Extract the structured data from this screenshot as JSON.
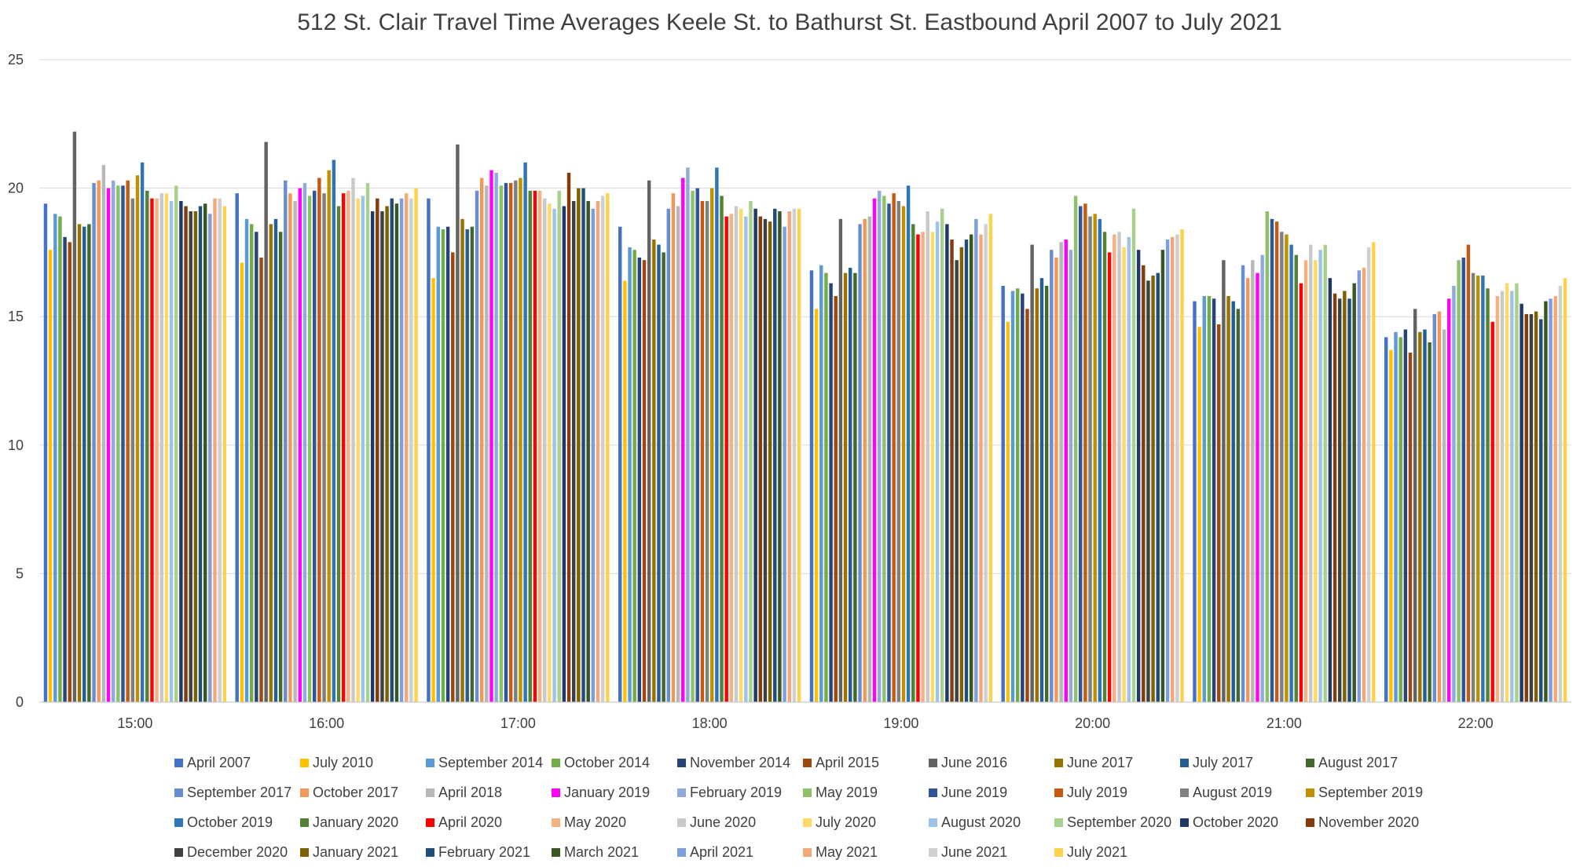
{
  "chart_data": {
    "type": "bar",
    "title": "512 St. Clair Travel Time Averages Keele St. to Bathurst St. Eastbound April 2007 to July 2021",
    "xlabel": "",
    "ylabel": "",
    "ylim": [
      0,
      25
    ],
    "yticks": [
      0,
      5,
      10,
      15,
      20,
      25
    ],
    "grid": true,
    "legend_position": "bottom",
    "categories": [
      "15:00",
      "16:00",
      "17:00",
      "18:00",
      "19:00",
      "20:00",
      "21:00",
      "22:00"
    ],
    "series": [
      {
        "name": "April 2007",
        "color": "#4472C4",
        "values": [
          19.4,
          19.8,
          19.6,
          18.5,
          16.8,
          16.2,
          15.6,
          14.2
        ]
      },
      {
        "name": "July 2010",
        "color": "#FFC000",
        "values": [
          17.6,
          17.1,
          16.5,
          16.4,
          15.3,
          14.8,
          14.6,
          13.7
        ]
      },
      {
        "name": "September 2014",
        "color": "#5B9BD5",
        "values": [
          19.0,
          18.8,
          18.5,
          17.7,
          17.0,
          16.0,
          15.8,
          14.4
        ]
      },
      {
        "name": "October 2014",
        "color": "#70AD47",
        "values": [
          18.9,
          18.6,
          18.4,
          17.6,
          16.7,
          16.1,
          15.8,
          14.2
        ]
      },
      {
        "name": "November 2014",
        "color": "#264478",
        "values": [
          18.1,
          18.3,
          18.5,
          17.3,
          16.3,
          15.9,
          15.7,
          14.5
        ]
      },
      {
        "name": "April 2015",
        "color": "#9E480E",
        "values": [
          17.9,
          17.3,
          17.5,
          17.2,
          15.8,
          15.3,
          14.7,
          13.6
        ]
      },
      {
        "name": "June 2016",
        "color": "#636363",
        "values": [
          22.2,
          21.8,
          21.7,
          20.3,
          18.8,
          17.8,
          17.2,
          15.3
        ]
      },
      {
        "name": "June 2017",
        "color": "#997300",
        "values": [
          18.6,
          18.6,
          18.8,
          18.0,
          16.7,
          16.1,
          15.8,
          14.4
        ]
      },
      {
        "name": "July 2017",
        "color": "#255E91",
        "values": [
          18.5,
          18.8,
          18.4,
          17.8,
          16.9,
          16.5,
          15.6,
          14.5
        ]
      },
      {
        "name": "August 2017",
        "color": "#43682B",
        "values": [
          18.6,
          18.3,
          18.5,
          17.5,
          16.7,
          16.2,
          15.3,
          14.0
        ]
      },
      {
        "name": "September 2017",
        "color": "#698ED0",
        "values": [
          20.2,
          20.3,
          19.9,
          19.2,
          18.6,
          17.6,
          17.0,
          15.1
        ]
      },
      {
        "name": "October 2017",
        "color": "#F1975A",
        "values": [
          20.3,
          19.8,
          20.4,
          19.8,
          18.8,
          17.3,
          16.5,
          15.2
        ]
      },
      {
        "name": "April 2018",
        "color": "#B7B7B7",
        "values": [
          20.9,
          19.5,
          20.1,
          19.3,
          18.9,
          17.9,
          17.2,
          14.5
        ]
      },
      {
        "name": "January 2019",
        "color": "#FF00FF",
        "values": [
          20.0,
          20.0,
          20.7,
          20.4,
          19.6,
          18.0,
          16.7,
          15.7
        ]
      },
      {
        "name": "February 2019",
        "color": "#8FAADC",
        "values": [
          20.3,
          20.2,
          20.6,
          20.8,
          19.9,
          17.6,
          17.4,
          16.2
        ]
      },
      {
        "name": "May 2019",
        "color": "#8CC168",
        "values": [
          20.1,
          19.7,
          20.1,
          19.9,
          19.7,
          19.7,
          19.1,
          17.2
        ]
      },
      {
        "name": "June 2019",
        "color": "#2F5597",
        "values": [
          20.1,
          19.9,
          20.2,
          20.0,
          19.4,
          19.3,
          18.8,
          17.3
        ]
      },
      {
        "name": "July 2019",
        "color": "#C55A11",
        "values": [
          20.3,
          20.4,
          20.2,
          19.5,
          19.8,
          19.4,
          18.7,
          17.8
        ]
      },
      {
        "name": "August 2019",
        "color": "#7F7F7F",
        "values": [
          19.6,
          19.8,
          20.3,
          19.5,
          19.5,
          18.9,
          18.3,
          16.7
        ]
      },
      {
        "name": "September 2019",
        "color": "#BF9000",
        "values": [
          20.5,
          20.7,
          20.4,
          20.0,
          19.3,
          19.0,
          18.2,
          16.6
        ]
      },
      {
        "name": "October 2019",
        "color": "#2E75B6",
        "values": [
          21.0,
          21.1,
          21.0,
          20.8,
          20.1,
          18.8,
          17.8,
          16.6
        ]
      },
      {
        "name": "January 2020",
        "color": "#548235",
        "values": [
          19.9,
          19.3,
          19.9,
          19.7,
          18.6,
          18.3,
          17.4,
          16.1
        ]
      },
      {
        "name": "April 2020",
        "color": "#FF0000",
        "values": [
          19.6,
          19.8,
          19.9,
          18.9,
          18.2,
          17.5,
          16.3,
          14.8
        ]
      },
      {
        "name": "May 2020",
        "color": "#F4B183",
        "values": [
          19.6,
          19.9,
          19.9,
          19.0,
          18.3,
          18.2,
          17.2,
          15.8
        ]
      },
      {
        "name": "June 2020",
        "color": "#C9C9C9",
        "values": [
          19.8,
          20.4,
          19.6,
          19.3,
          19.1,
          18.3,
          17.8,
          16.0
        ]
      },
      {
        "name": "July 2020",
        "color": "#FFD966",
        "values": [
          19.8,
          19.6,
          19.4,
          19.2,
          18.3,
          17.7,
          17.2,
          16.3
        ]
      },
      {
        "name": "August 2020",
        "color": "#9DC3E6",
        "values": [
          19.5,
          19.7,
          19.2,
          18.9,
          18.7,
          18.1,
          17.6,
          16.0
        ]
      },
      {
        "name": "September 2020",
        "color": "#A9D18E",
        "values": [
          20.1,
          20.2,
          19.9,
          19.5,
          19.2,
          19.2,
          17.8,
          16.3
        ]
      },
      {
        "name": "October 2020",
        "color": "#203864",
        "values": [
          19.5,
          19.1,
          19.3,
          19.2,
          18.6,
          17.6,
          16.5,
          15.5
        ]
      },
      {
        "name": "November 2020",
        "color": "#843C0C",
        "values": [
          19.3,
          19.6,
          20.6,
          18.9,
          18.0,
          17.0,
          15.9,
          15.1
        ]
      },
      {
        "name": "December 2020",
        "color": "#404040",
        "values": [
          19.1,
          19.1,
          19.5,
          18.8,
          17.2,
          16.4,
          15.7,
          15.1
        ]
      },
      {
        "name": "January 2021",
        "color": "#7F6000",
        "values": [
          19.1,
          19.3,
          20.0,
          18.7,
          17.7,
          16.6,
          16.0,
          15.2
        ]
      },
      {
        "name": "February 2021",
        "color": "#1F4E79",
        "values": [
          19.3,
          19.6,
          20.0,
          19.2,
          18.0,
          16.7,
          15.7,
          14.9
        ]
      },
      {
        "name": "March 2021",
        "color": "#385723",
        "values": [
          19.4,
          19.4,
          19.5,
          19.1,
          18.2,
          17.6,
          16.3,
          15.6
        ]
      },
      {
        "name": "April 2021",
        "color": "#7C9FDB",
        "values": [
          19.0,
          19.6,
          19.2,
          18.5,
          18.8,
          18.0,
          16.8,
          15.7
        ]
      },
      {
        "name": "May 2021",
        "color": "#F4A779",
        "values": [
          19.6,
          19.8,
          19.5,
          19.1,
          18.2,
          18.1,
          16.9,
          15.8
        ]
      },
      {
        "name": "June 2021",
        "color": "#D0CECE",
        "values": [
          19.6,
          19.6,
          19.7,
          19.2,
          18.6,
          18.2,
          17.7,
          16.2
        ]
      },
      {
        "name": "July 2021",
        "color": "#FFD24D",
        "values": [
          19.3,
          20.0,
          19.8,
          19.2,
          19.0,
          18.4,
          17.9,
          16.5
        ]
      }
    ]
  }
}
